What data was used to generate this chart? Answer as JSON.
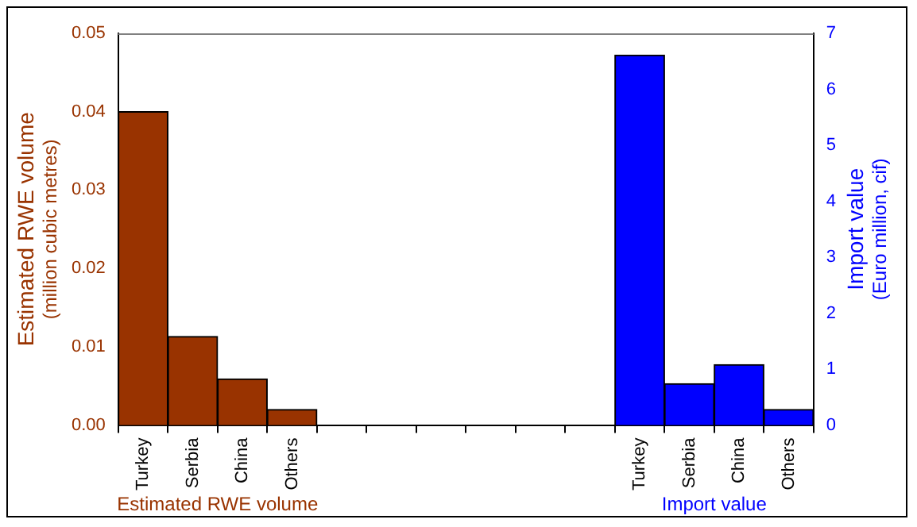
{
  "chart_data": {
    "type": "bar",
    "categories": [
      "Turkey",
      "Serbia",
      "China",
      "Others",
      null,
      null,
      null,
      null,
      null,
      null,
      "Turkey",
      "Serbia",
      "China",
      "Others"
    ],
    "series": [
      {
        "name": "Estimated RWE volume",
        "color": "#993300",
        "axis": "y",
        "values": [
          0.04,
          0.0113,
          0.0059,
          0.002,
          null,
          null,
          null,
          null,
          null,
          null,
          null,
          null,
          null,
          null
        ]
      },
      {
        "name": "Import value",
        "color": "#0000ff",
        "axis": "y2",
        "values": [
          null,
          null,
          null,
          null,
          null,
          null,
          null,
          null,
          null,
          null,
          6.61,
          0.74,
          1.08,
          0.28
        ]
      }
    ],
    "ylabel": "Estimated RWE volume\n(million cubic metres)",
    "y2label": "Import value\n(Euro million, cif)",
    "ylim": [
      0,
      0.05
    ],
    "yticks": [
      {
        "value": 0,
        "label": "0.00"
      },
      {
        "value": 0.01,
        "label": "0.01"
      },
      {
        "value": 0.02,
        "label": "0.02"
      },
      {
        "value": 0.03,
        "label": "0.03"
      },
      {
        "value": 0.04,
        "label": "0.04"
      },
      {
        "value": 0.05,
        "label": "0.05"
      }
    ],
    "y2lim": [
      0,
      7
    ],
    "y2ticks": [
      0,
      1,
      2,
      3,
      4,
      5,
      6,
      7
    ],
    "grid": false,
    "legend": false
  }
}
